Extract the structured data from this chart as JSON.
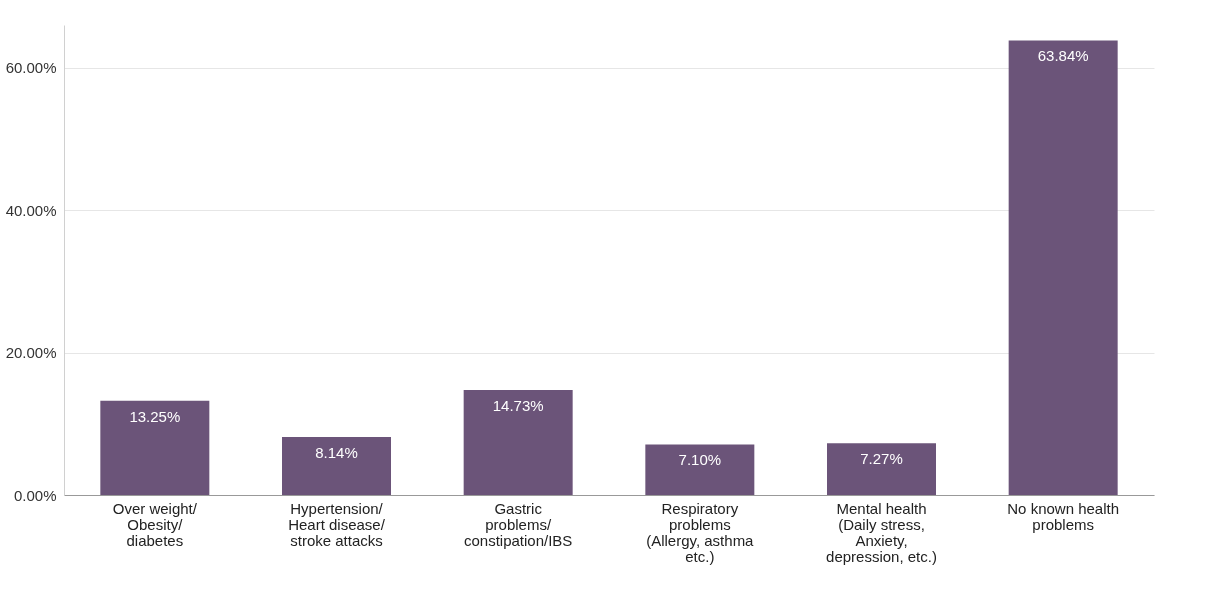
{
  "chart_data": {
    "type": "bar",
    "categories": [
      "Over weight/\nObesity/\ndiabetes",
      "Hypertension/\nHeart disease/\nstroke attacks",
      "Gastric\nproblems/\nconstipation/IBS",
      "Respiratory\nproblems\n(Allergy, asthma\netc.)",
      "Mental health\n(Daily stress,\nAnxiety,\ndepression, etc.)",
      "No known health\nproblems"
    ],
    "values": [
      13.25,
      8.14,
      14.73,
      7.1,
      7.27,
      63.84
    ],
    "value_labels": [
      "13.25%",
      "8.14%",
      "14.73%",
      "7.10%",
      "7.27%",
      "63.84%"
    ],
    "color": "#6b5479",
    "ylim": [
      0,
      66
    ],
    "yticks": [
      {
        "value": 0,
        "label": "0.00%"
      },
      {
        "value": 20,
        "label": "20.00%"
      },
      {
        "value": 40,
        "label": "40.00%"
      },
      {
        "value": 60,
        "label": "60.00%"
      }
    ],
    "grid": "y"
  }
}
